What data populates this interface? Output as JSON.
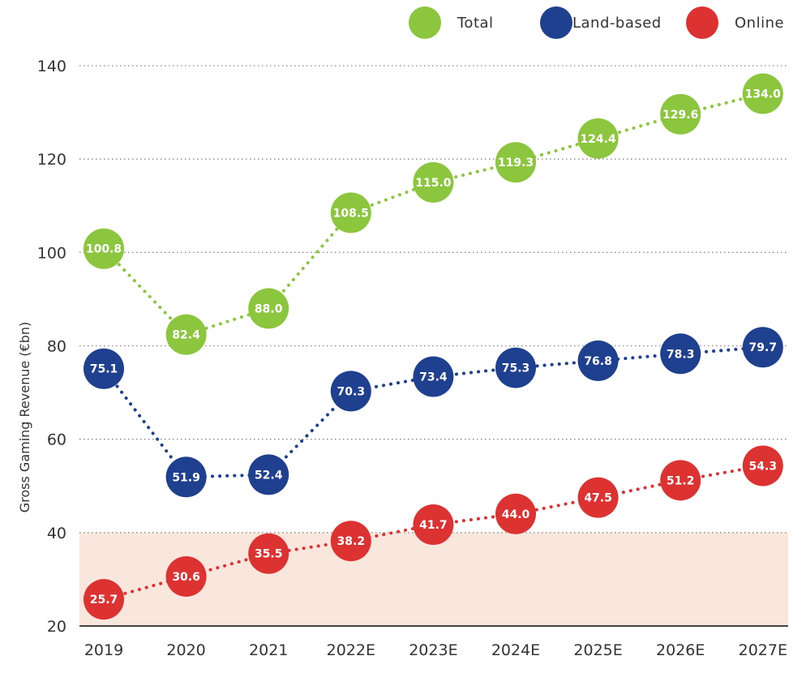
{
  "chart_data": {
    "type": "line",
    "title": "",
    "xlabel": "",
    "ylabel": "Gross Gaming Revenue (€bn)",
    "categories": [
      "2019",
      "2020",
      "2021",
      "2022E",
      "2023E",
      "2024E",
      "2025E",
      "2026E",
      "2027E"
    ],
    "ylim": [
      20,
      140
    ],
    "yticks": [
      "20",
      "40",
      "60",
      "80",
      "100",
      "120",
      "140"
    ],
    "grid": "horizontal dotted",
    "shaded_band": {
      "y_from": 20,
      "y_to": 40,
      "color": "#f9e6dd"
    },
    "legend_position": "top-right",
    "series": [
      {
        "name": "Total",
        "color": "#8cc63f",
        "values": [
          100.8,
          82.4,
          88.0,
          108.5,
          115.0,
          119.3,
          124.4,
          129.6,
          134.0
        ],
        "labels": [
          "100.8",
          "82.4",
          "88.0",
          "108.5",
          "115.0",
          "119.3",
          "124.4",
          "129.6",
          "134.0"
        ]
      },
      {
        "name": "Land-based",
        "color": "#1f3f8f",
        "values": [
          75.1,
          51.9,
          52.4,
          70.3,
          73.4,
          75.3,
          76.8,
          78.3,
          79.7
        ],
        "labels": [
          "75.1",
          "51.9",
          "52.4",
          "70.3",
          "73.4",
          "75.3",
          "76.8",
          "78.3",
          "79.7"
        ]
      },
      {
        "name": "Online",
        "color": "#dc3232",
        "values": [
          25.7,
          30.6,
          35.5,
          38.2,
          41.7,
          44.0,
          47.5,
          51.2,
          54.3
        ],
        "labels": [
          "25.7",
          "30.6",
          "35.5",
          "38.2",
          "41.7",
          "44.0",
          "47.5",
          "51.2",
          "54.3"
        ]
      }
    ]
  }
}
